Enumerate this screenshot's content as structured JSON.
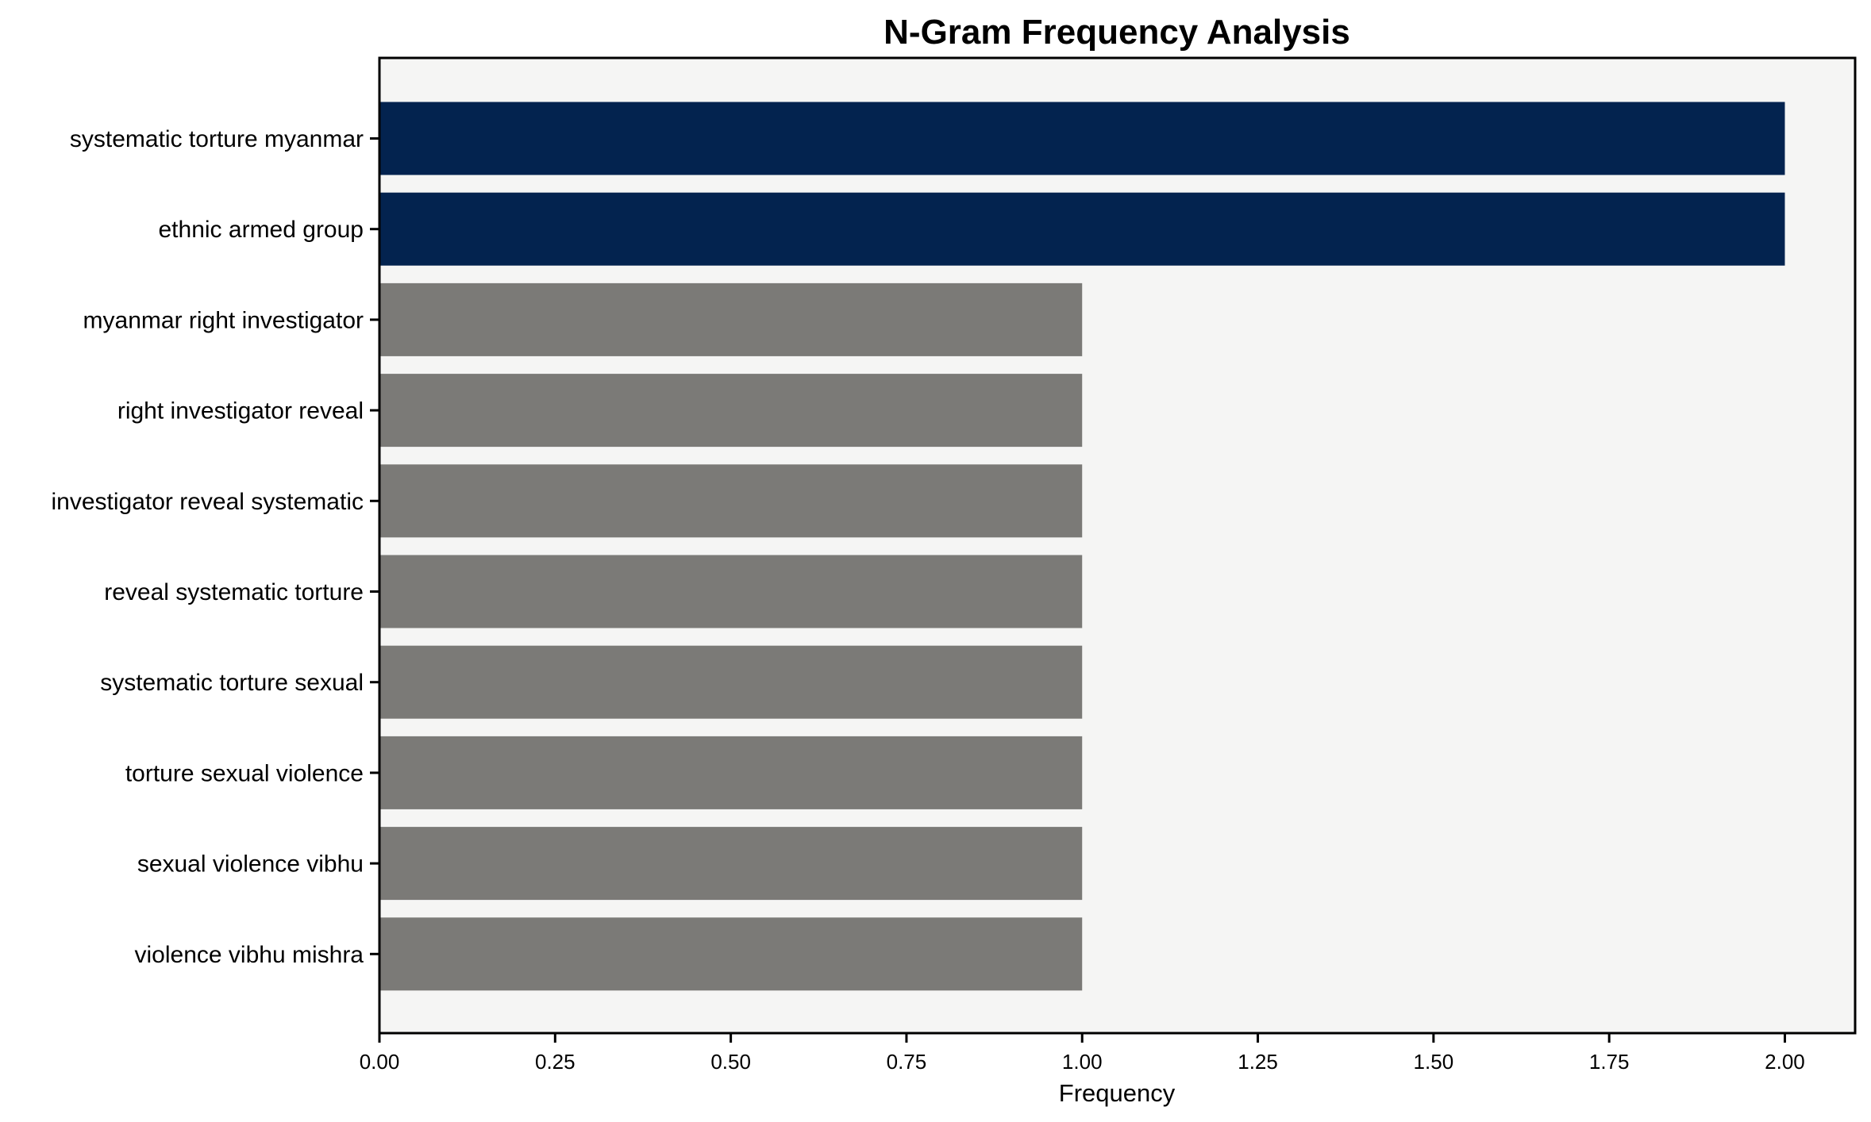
{
  "title": "N-Gram Frequency Analysis",
  "colors": {
    "highlight_bar": "#03234F",
    "default_bar": "#7B7A77",
    "plot_background": "#F5F5F4",
    "figure_background": "#FFFFFF",
    "spine": "#000000",
    "text": "#000000"
  },
  "chart_data": {
    "type": "bar",
    "orientation": "horizontal",
    "title": "N-Gram Frequency Analysis",
    "xlabel": "Frequency",
    "ylabel": "",
    "categories": [
      "systematic torture myanmar",
      "ethnic armed group",
      "myanmar right investigator",
      "right investigator reveal",
      "investigator reveal systematic",
      "reveal systematic torture",
      "systematic torture sexual",
      "torture sexual violence",
      "sexual violence vibhu",
      "violence vibhu mishra"
    ],
    "values": [
      2,
      2,
      1,
      1,
      1,
      1,
      1,
      1,
      1,
      1
    ],
    "bar_colors": [
      "#03234F",
      "#03234F",
      "#7B7A77",
      "#7B7A77",
      "#7B7A77",
      "#7B7A77",
      "#7B7A77",
      "#7B7A77",
      "#7B7A77",
      "#7B7A77"
    ],
    "xlim": [
      0,
      2.1
    ],
    "x_ticks": [
      {
        "value": 0.0,
        "label": "0.00"
      },
      {
        "value": 0.25,
        "label": "0.25"
      },
      {
        "value": 0.5,
        "label": "0.50"
      },
      {
        "value": 0.75,
        "label": "0.75"
      },
      {
        "value": 1.0,
        "label": "1.00"
      },
      {
        "value": 1.25,
        "label": "1.25"
      },
      {
        "value": 1.5,
        "label": "1.50"
      },
      {
        "value": 1.75,
        "label": "1.75"
      },
      {
        "value": 2.0,
        "label": "2.00"
      }
    ],
    "grid": false,
    "legend": null
  }
}
